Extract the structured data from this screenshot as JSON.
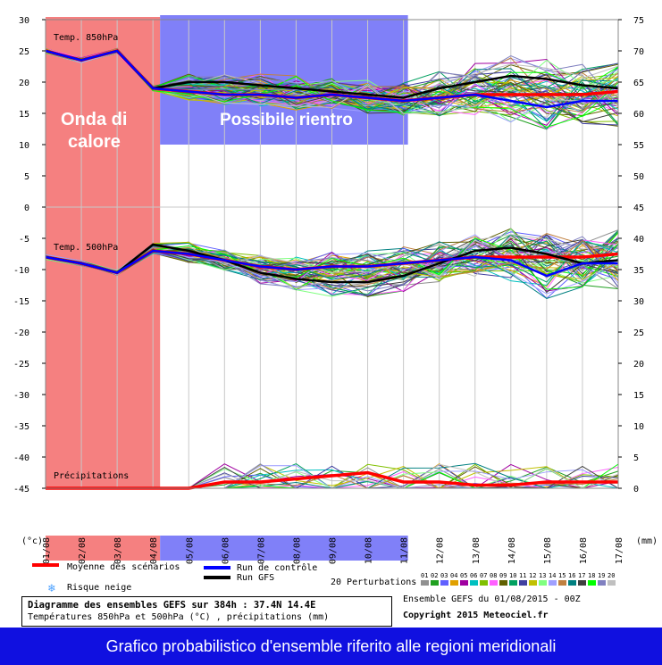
{
  "header": {
    "left_unit": "(°c)",
    "right_unit": "(mm)"
  },
  "panels": {
    "t850_label": "Temp. 850hPa",
    "t500_label": "Temp. 500hPa",
    "precip_label": "Précipitations"
  },
  "overlays": {
    "red_text_line1": "Onda di",
    "red_text_line2": "calore",
    "blue_text": "Possibile rientro",
    "red_color": "#f58080",
    "blue_color": "#8080f8"
  },
  "axes": {
    "left_ticks": [
      "30",
      "25",
      "20",
      "15",
      "10",
      "5",
      "0",
      "-5",
      "-10",
      "-15",
      "-20",
      "-25",
      "-30",
      "-35",
      "-40",
      "-45"
    ],
    "right_ticks": [
      "75",
      "70",
      "65",
      "60",
      "55",
      "50",
      "45",
      "40",
      "35",
      "30",
      "25",
      "20",
      "15",
      "10",
      "5",
      "0"
    ]
  },
  "dates": [
    "01/08",
    "02/08",
    "03/08",
    "04/08",
    "05/08",
    "06/08",
    "07/08",
    "08/08",
    "09/08",
    "10/08",
    "11/08",
    "12/08",
    "13/08",
    "14/08",
    "15/08",
    "16/08",
    "17/08"
  ],
  "chart_data": {
    "type": "line",
    "title": "Diagramme des ensembles GEFS sur 384h : 37.4N 14.4E",
    "x": [
      "01/08",
      "02/08",
      "03/08",
      "04/08",
      "05/08",
      "06/08",
      "07/08",
      "08/08",
      "09/08",
      "10/08",
      "11/08",
      "12/08",
      "13/08",
      "14/08",
      "15/08",
      "16/08",
      "17/08"
    ],
    "left_axis_range": [
      -45,
      30
    ],
    "right_axis_range": [
      0,
      75
    ],
    "series": [
      {
        "name": "Moyenne des scénarios",
        "panel": "850hPa",
        "color": "#ff0000",
        "values": [
          25,
          23.5,
          25,
          19,
          18.5,
          18,
          18,
          17.5,
          18,
          17.5,
          17,
          17.5,
          18,
          18,
          18,
          18,
          18.5
        ]
      },
      {
        "name": "Run GFS",
        "panel": "850hPa",
        "color": "#000000",
        "values": [
          25,
          23.5,
          25,
          19,
          20,
          20,
          19.5,
          19,
          18.5,
          18,
          17.5,
          19,
          20,
          21,
          20.5,
          19.5,
          19
        ]
      },
      {
        "name": "Run de contrôle",
        "panel": "850hPa",
        "color": "#0000ff",
        "values": [
          25,
          23.5,
          25,
          19,
          18.5,
          18,
          18,
          17.5,
          18,
          17.5,
          17,
          17.5,
          18,
          17,
          16,
          17,
          17
        ]
      },
      {
        "name": "Moyenne des scénarios",
        "panel": "500hPa",
        "color": "#ff0000",
        "values": [
          -8,
          -9,
          -10.5,
          -7,
          -7.5,
          -8.5,
          -9.5,
          -10,
          -9.5,
          -9.5,
          -9,
          -8.5,
          -8,
          -8,
          -8,
          -8,
          -7.5
        ]
      },
      {
        "name": "Run GFS",
        "panel": "500hPa",
        "color": "#000000",
        "values": [
          -8,
          -9,
          -10.5,
          -6,
          -7,
          -8.5,
          -10.5,
          -11.5,
          -12,
          -12,
          -11,
          -9,
          -7,
          -6.5,
          -7.5,
          -9,
          -8.5
        ]
      },
      {
        "name": "Run de contrôle",
        "panel": "500hPa",
        "color": "#0000ff",
        "values": [
          -8,
          -9,
          -10.5,
          -7,
          -7.5,
          -8.5,
          -9.5,
          -10,
          -9.5,
          -9.5,
          -9,
          -8.5,
          -8,
          -8.5,
          -11,
          -9,
          -9
        ]
      },
      {
        "name": "Moyenne des scénarios",
        "panel": "Précipitations",
        "color": "#ff0000",
        "values_mm": [
          0,
          0,
          0,
          0,
          0,
          1,
          1,
          1.5,
          2,
          2.5,
          1,
          1,
          0.5,
          0.5,
          1,
          1,
          1
        ]
      }
    ],
    "annotations": [
      {
        "text": "Onda di calore",
        "from": "01/08",
        "to": "04/08"
      },
      {
        "text": "Possibile rientro",
        "from": "04/08",
        "to": "11/08"
      }
    ]
  },
  "legend": {
    "mean": "Moyenne des scénarios",
    "control": "Run de contrôle",
    "gfs": "Run GFS",
    "snow": "Risque neige",
    "perturbations": "20 Perturbations",
    "pert_numbers": [
      "01",
      "02",
      "03",
      "04",
      "05",
      "06",
      "07",
      "08",
      "09",
      "10",
      "11",
      "12",
      "13",
      "14",
      "15",
      "16",
      "17",
      "18",
      "19",
      "20"
    ],
    "pert_colors": [
      "#909090",
      "#20a020",
      "#6060ff",
      "#e0a000",
      "#a000a0",
      "#00c0c0",
      "#80c000",
      "#ff60ff",
      "#606000",
      "#00a060",
      "#4040a0",
      "#c0c000",
      "#80ff80",
      "#a0a0ff",
      "#c08040",
      "#008080",
      "#404040",
      "#00ff00",
      "#8080c0",
      "#c0c0c0"
    ],
    "mean_color": "#ff0000",
    "control_color": "#0000ff",
    "gfs_color": "#000000"
  },
  "info": {
    "line1": "Diagramme des ensembles GEFS sur 384h : 37.4N 14.4E",
    "line2": "Températures 850hPa et 500hPa (°C) , précipitations (mm)",
    "ensemble": "Ensemble GEFS du 01/08/2015 - 00Z",
    "copyright": "Copyright 2015 Meteociel.fr"
  },
  "footer": {
    "banner": "Grafico probabilistico d'ensemble riferito alle regioni meridionali"
  }
}
